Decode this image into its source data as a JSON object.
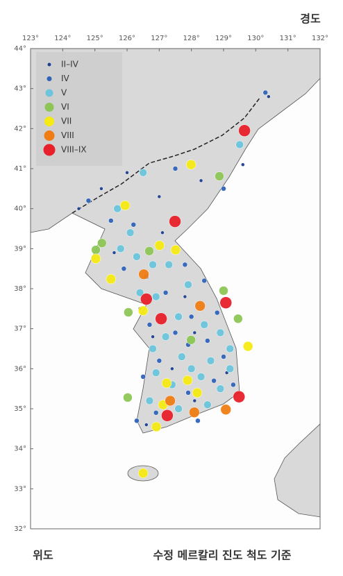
{
  "chart_data": {
    "type": "scatter",
    "x_label": "경도",
    "y_label": "위도",
    "note": "수정 메르칼리 진도 척도 기준",
    "xlim": [
      123,
      132
    ],
    "ylim": [
      32,
      44
    ],
    "xticks": [
      {
        "value": 123,
        "label": "123°"
      },
      {
        "value": 124,
        "label": "124°"
      },
      {
        "value": 125,
        "label": "125°"
      },
      {
        "value": 126,
        "label": "126°"
      },
      {
        "value": 127,
        "label": "127°"
      },
      {
        "value": 128,
        "label": "128°"
      },
      {
        "value": 129,
        "label": "129°"
      },
      {
        "value": 130,
        "label": "130°"
      },
      {
        "value": 131,
        "label": "131°"
      },
      {
        "value": 132,
        "label": "132°"
      }
    ],
    "yticks": [
      {
        "value": 32,
        "label": "32°"
      },
      {
        "value": 33,
        "label": "33°"
      },
      {
        "value": 34,
        "label": "34°"
      },
      {
        "value": 35,
        "label": "35°"
      },
      {
        "value": 36,
        "label": "36°"
      },
      {
        "value": 37,
        "label": "37°"
      },
      {
        "value": 38,
        "label": "38°"
      },
      {
        "value": 39,
        "label": "39°"
      },
      {
        "value": 40,
        "label": "40°"
      },
      {
        "value": 41,
        "label": "41°"
      },
      {
        "value": 42,
        "label": "42°"
      },
      {
        "value": 43,
        "label": "43°"
      },
      {
        "value": 44,
        "label": "44°"
      }
    ],
    "legend": "upper left",
    "series": [
      {
        "name": "II–IV",
        "color": "#1f3f8f",
        "x": [
          124.5,
          125.2,
          126.0,
          127.0,
          128.3,
          129.6,
          125.6,
          127.1,
          126.4,
          127.8,
          128.1,
          126.8,
          127.4,
          128.1,
          129.1,
          126.6,
          130.4
        ],
        "y": [
          40.0,
          40.5,
          40.9,
          40.3,
          40.7,
          41.1,
          38.9,
          39.4,
          37.5,
          37.8,
          36.9,
          36.8,
          36.0,
          35.2,
          35.9,
          34.6,
          42.8
        ]
      },
      {
        "name": "IV",
        "color": "#2f63b8",
        "x": [
          124.8,
          125.5,
          126.2,
          125.9,
          126.6,
          127.8,
          128.4,
          127.2,
          126.7,
          127.5,
          128.0,
          128.8,
          127.0,
          127.9,
          128.5,
          129.0,
          126.5,
          127.9,
          128.7,
          129.3,
          126.9,
          128.2,
          126.3,
          129.0,
          130.3,
          127.5
        ],
        "y": [
          40.2,
          39.7,
          39.6,
          38.5,
          38.3,
          38.6,
          38.2,
          37.9,
          37.1,
          36.9,
          37.3,
          37.4,
          36.2,
          36.6,
          36.7,
          36.3,
          35.8,
          35.4,
          35.7,
          35.6,
          34.9,
          34.7,
          34.7,
          40.5,
          42.9,
          41.0
        ]
      },
      {
        "name": "V",
        "color": "#6cc5dc",
        "x": [
          126.1,
          125.8,
          126.3,
          126.8,
          127.3,
          127.9,
          126.4,
          126.9,
          127.6,
          128.4,
          128.9,
          127.2,
          126.8,
          127.7,
          128.6,
          129.2,
          126.9,
          127.4,
          128.3,
          128.9,
          126.7,
          127.6,
          128.5,
          125.7,
          126.5,
          129.5,
          129.2,
          128.0
        ],
        "y": [
          39.4,
          39.0,
          38.8,
          38.6,
          38.6,
          38.1,
          37.9,
          37.8,
          37.3,
          37.1,
          36.9,
          36.8,
          36.5,
          36.3,
          36.2,
          36.0,
          35.9,
          35.6,
          35.8,
          35.5,
          35.2,
          35.0,
          35.1,
          40.0,
          40.9,
          41.6,
          36.5,
          36.0
        ]
      },
      {
        "name": "VI",
        "color": "#8dc655",
        "x": [
          128.87,
          125.22,
          125.03,
          126.69,
          126.04,
          129.45,
          129.0,
          126.02,
          127.99
        ],
        "y": [
          40.81,
          39.14,
          38.97,
          38.94,
          37.41,
          37.25,
          37.95,
          35.28,
          36.72
        ]
      },
      {
        "name": "VII",
        "color": "#f5ea14",
        "x": [
          127.99,
          125.94,
          125.03,
          125.5,
          127.01,
          127.51,
          126.5,
          129.76,
          127.23,
          127.88,
          128.18,
          126.91,
          127.12,
          126.5
        ],
        "y": [
          41.1,
          40.08,
          38.75,
          38.24,
          39.08,
          38.97,
          37.45,
          36.56,
          35.64,
          35.71,
          35.4,
          34.55,
          35.1,
          33.39
        ]
      },
      {
        "name": "VIII",
        "color": "#ef7d14",
        "x": [
          126.52,
          128.27,
          129.07,
          128.09,
          127.34
        ],
        "y": [
          38.36,
          37.57,
          34.98,
          34.91,
          35.2
        ]
      },
      {
        "name": "VIII–IX",
        "color": "#e8202a",
        "x": [
          129.65,
          127.49,
          126.6,
          127.06,
          129.07,
          127.25,
          129.48
        ],
        "y": [
          41.95,
          39.68,
          37.74,
          37.25,
          37.65,
          34.83,
          35.3
        ]
      }
    ]
  }
}
